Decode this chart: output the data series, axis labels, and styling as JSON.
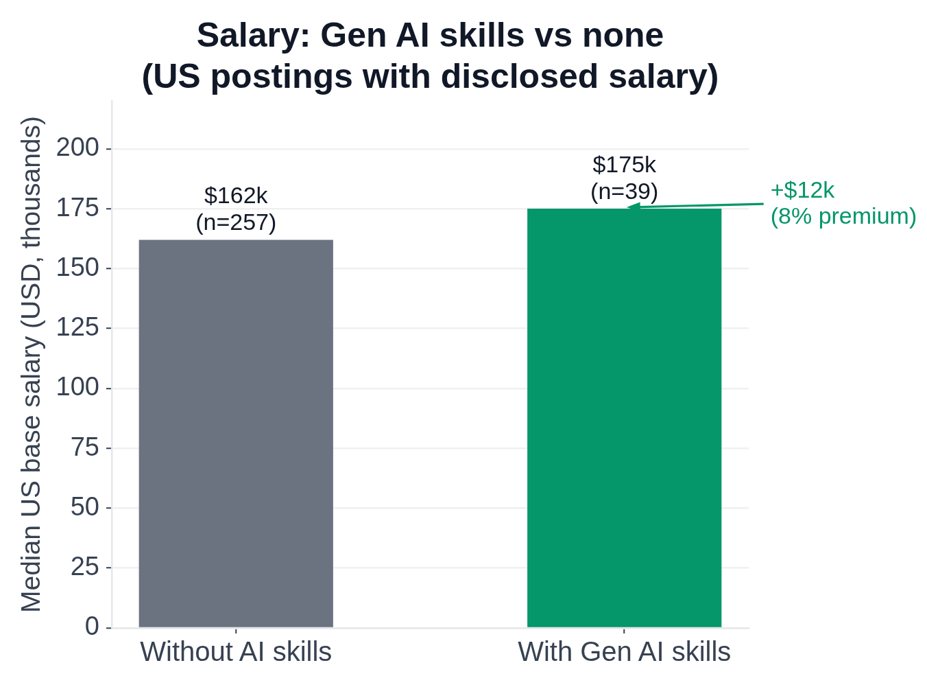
{
  "chart_data": {
    "type": "bar",
    "title": "Salary: Gen AI skills vs none\n(US postings with disclosed salary)",
    "ylabel": "Median US base salary (USD, thousands)",
    "categories": [
      "Without AI skills",
      "With Gen AI skills"
    ],
    "values": [
      162,
      175
    ],
    "colors": [
      "#6b7280",
      "#059669"
    ],
    "value_labels": [
      "$162k",
      "$175k"
    ],
    "annotations": [
      {
        "text": "(n=257)",
        "x": "Without AI skills",
        "y": 162
      },
      {
        "text": "(n=39)",
        "x": "With Gen AI skills",
        "y": 175
      },
      "+$12k\n(8% premium)"
    ],
    "ylim": [
      0,
      220
    ],
    "yticks": [
      0,
      25,
      50,
      75,
      100,
      125,
      150,
      175,
      200
    ],
    "grid": "y"
  }
}
